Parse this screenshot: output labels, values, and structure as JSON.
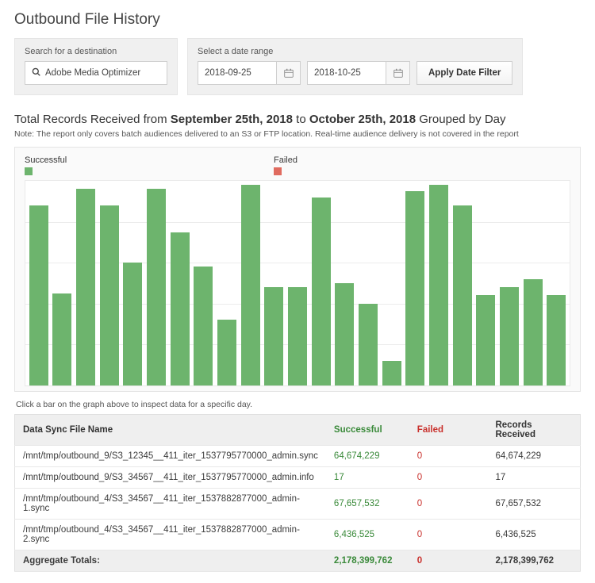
{
  "page_title": "Outbound File History",
  "filters": {
    "search_label": "Search for a destination",
    "search_value": "Adobe Media Optimizer",
    "date_label": "Select a date range",
    "date_from": "2018-09-25",
    "date_to": "2018-10-25",
    "apply_label": "Apply Date Filter"
  },
  "summary": {
    "prefix": "Total Records Received from ",
    "from_date": "September 25th, 2018",
    "mid": " to ",
    "to_date": "October 25th, 2018",
    "suffix": " Grouped by Day",
    "note": "Note: The report only covers batch audiences delivered to an S3 or FTP location. Real-time audience delivery is not covered in the report"
  },
  "legend": {
    "success_label": "Successful",
    "success_color": "#6db46d",
    "failed_label": "Failed",
    "failed_color": "#e06b5f"
  },
  "chart": {
    "type": "bar",
    "ylim_max": 100,
    "grid_steps": 5,
    "bar_color": "#6db46d",
    "background_color": "#ffffff",
    "grid_color": "#ececec",
    "values": [
      88,
      45,
      96,
      88,
      60,
      96,
      75,
      58,
      32,
      98,
      48,
      48,
      92,
      50,
      40,
      12,
      95,
      98,
      88,
      44,
      48,
      52,
      44
    ]
  },
  "hint": "Click a bar on the graph above to inspect data for a specific day.",
  "table": {
    "headers": {
      "name": "Data Sync File Name",
      "successful": "Successful",
      "failed": "Failed",
      "received": "Records Received"
    },
    "rows": [
      {
        "name": "/mnt/tmp/outbound_9/S3_12345__411_iter_1537795770000_admin.sync",
        "successful": "64,674,229",
        "failed": "0",
        "received": "64,674,229"
      },
      {
        "name": "/mnt/tmp/outbound_9/S3_34567__411_iter_1537795770000_admin.info",
        "successful": "17",
        "failed": "0",
        "received": "17"
      },
      {
        "name": "/mnt/tmp/outbound_4/S3_34567__411_iter_1537882877000_admin-1.sync",
        "successful": "67,657,532",
        "failed": "0",
        "received": "67,657,532"
      },
      {
        "name": "/mnt/tmp/outbound_4/S3_34567__411_iter_1537882877000_admin-2.sync",
        "successful": "6,436,525",
        "failed": "0",
        "received": "6,436,525"
      }
    ],
    "totals": {
      "label": "Aggregate Totals:",
      "successful": "2,178,399,762",
      "failed": "0",
      "received": "2,178,399,762"
    }
  }
}
